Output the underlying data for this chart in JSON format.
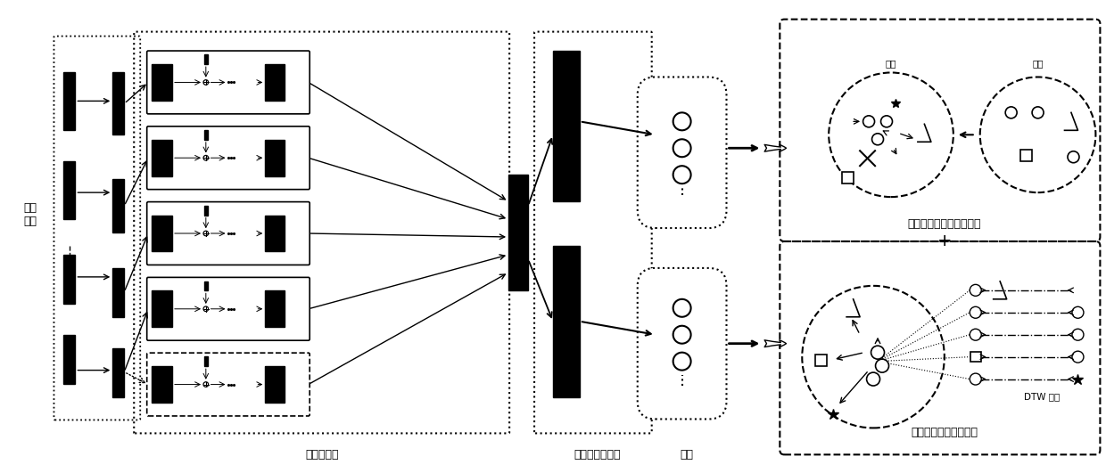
{
  "title": "",
  "bg_color": "#ffffff",
  "text_color": "#000000",
  "label_sharednet": "共享的网络",
  "label_tasknet": "任务特有的网络",
  "label_repr": "表示",
  "label_timeseries": "时间\n序列",
  "label_supervised": "有监督学习：三元组损失",
  "label_unsupervised": "无监督学习：对比损失",
  "label_boundary1": "边界",
  "label_boundary2": "边界",
  "label_dtw": "DTW 距离",
  "label_plus": "+",
  "figsize": [
    12.4,
    5.31
  ],
  "dpi": 100
}
